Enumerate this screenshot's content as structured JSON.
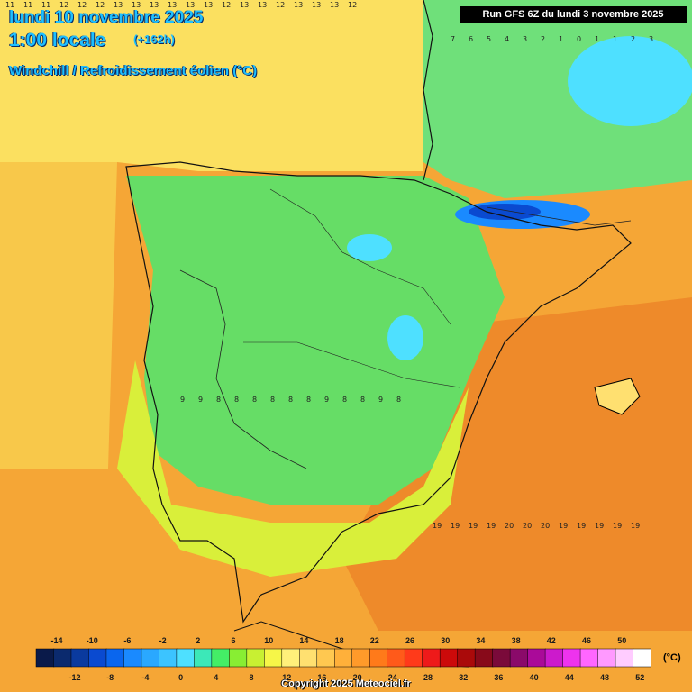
{
  "header": {
    "date_line": "lundi 10 novembre 2025",
    "time_line": "1:00 locale",
    "lead_time": "(+162h)",
    "variable": "Windchill / Refroidissement éolien (°C)"
  },
  "run_info": "Run GFS 6Z du lundi 3 novembre 2025",
  "legend": {
    "units": "(°C)",
    "top_labels": [
      "-14",
      "-10",
      "-6",
      "-2",
      "2",
      "6",
      "10",
      "14",
      "18",
      "22",
      "26",
      "30",
      "34",
      "38",
      "42",
      "46",
      "50"
    ],
    "bottom_labels": [
      "-12",
      "-8",
      "-4",
      "0",
      "4",
      "8",
      "12",
      "16",
      "20",
      "24",
      "28",
      "32",
      "36",
      "40",
      "44",
      "48",
      "52"
    ],
    "colors": [
      "#0a1a4a",
      "#0b2a6e",
      "#0a3a9e",
      "#0a4ad0",
      "#0a66ee",
      "#1a8aff",
      "#2aa8ff",
      "#3cc4ff",
      "#4ee0ff",
      "#3ce8b8",
      "#44ee66",
      "#88ee33",
      "#c8f032",
      "#f6f648",
      "#fff07a",
      "#ffe070",
      "#ffc850",
      "#ffb03a",
      "#ff9a2a",
      "#ff7a1a",
      "#ff5a1a",
      "#ff3a1a",
      "#ee1a1a",
      "#cc0a0a",
      "#aa0a0a",
      "#880a1a",
      "#7a0a3a",
      "#8a0a6a",
      "#aa0a99",
      "#cc1acc",
      "#ee33ee",
      "#ff66ff",
      "#ff99ff",
      "#ffccff",
      "#ffffff"
    ]
  },
  "map_values": {
    "atlantic_north_row": "11 11 11 12 12 12 13 13 13 13 13 13 12 13 13 12 13 13 13 12",
    "france_row": "7 6 5 4 3 2 1 0 1 1 2 3",
    "iberia_row": "9 9 8 8 8 8 8 8 9 8 8 9 8",
    "med_row": "19 19 19 19 20 20 20 19 19 19 19 19"
  },
  "copyright": "Copyright 2025 Meteociel.fr"
}
